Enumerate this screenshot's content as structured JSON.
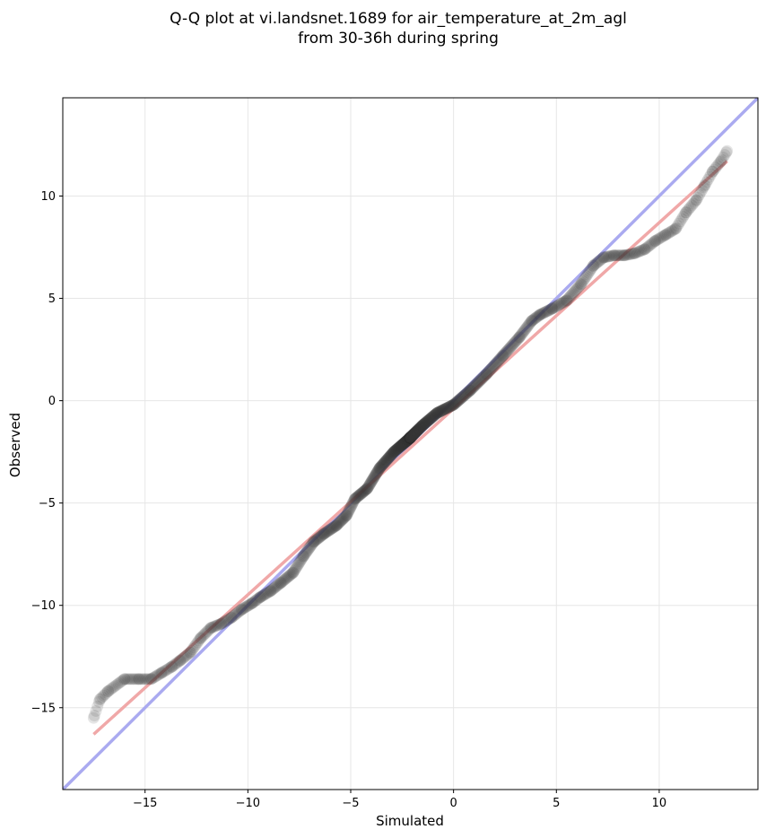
{
  "chart_data": {
    "type": "scatter",
    "title": "Q-Q plot at vi.landsnet.1689 for air_temperature_at_2m_agl\nfrom 30-36h during spring",
    "title_lines": [
      "Q-Q plot at vi.landsnet.1689 for air_temperature_at_2m_agl",
      "from 30-36h during spring"
    ],
    "xlabel": "Simulated",
    "ylabel": "Observed",
    "xlim": [
      -19,
      14.8
    ],
    "ylim": [
      -19,
      14.8
    ],
    "xticks": [
      -15,
      -10,
      -5,
      0,
      5,
      10
    ],
    "yticks": [
      -15,
      -10,
      -5,
      0,
      5,
      10
    ],
    "xtick_labels": [
      "−15",
      "−10",
      "−5",
      "0",
      "5",
      "10"
    ],
    "ytick_labels": [
      "−15",
      "−10",
      "−5",
      "0",
      "5",
      "10"
    ],
    "grid": true,
    "colors": {
      "points": "#333333",
      "identity_line": "#aaaaf0",
      "fit_line": "#f0a8a8",
      "grid": "#e6e6e6"
    },
    "lines": [
      {
        "kind": "identity",
        "x": [
          -19,
          14.8
        ],
        "y": [
          -19,
          14.8
        ]
      },
      {
        "kind": "fit",
        "x": [
          -17.5,
          13.3
        ],
        "y": [
          -16.3,
          11.7
        ]
      }
    ],
    "quantile_curve": {
      "x": [
        -17.5,
        -17.2,
        -16.8,
        -16.0,
        -15.3,
        -14.7,
        -14.2,
        -13.7,
        -13.3,
        -12.8,
        -12.3,
        -11.8,
        -11.3,
        -10.8,
        -10.3,
        -9.8,
        -9.4,
        -8.9,
        -8.4,
        -7.8,
        -7.3,
        -6.8,
        -6.3,
        -5.7,
        -5.2,
        -4.8,
        -4.2,
        -3.6,
        -2.9,
        -2.2,
        -1.5,
        -0.8,
        0.0,
        0.8,
        1.6,
        2.4,
        3.2,
        3.8,
        4.2,
        4.8,
        5.5,
        6.2,
        6.8,
        7.3,
        7.8,
        8.3,
        8.8,
        9.3,
        9.8,
        10.3,
        10.8,
        11.3,
        11.8,
        12.2,
        12.6,
        13.0,
        13.3
      ],
      "y": [
        -15.5,
        -14.6,
        -14.2,
        -13.6,
        -13.6,
        -13.6,
        -13.3,
        -13.0,
        -12.7,
        -12.3,
        -11.6,
        -11.1,
        -10.9,
        -10.6,
        -10.2,
        -9.9,
        -9.6,
        -9.3,
        -8.9,
        -8.4,
        -7.6,
        -6.9,
        -6.5,
        -6.1,
        -5.6,
        -4.8,
        -4.3,
        -3.3,
        -2.5,
        -1.9,
        -1.2,
        -0.6,
        -0.2,
        0.5,
        1.3,
        2.2,
        3.1,
        3.9,
        4.2,
        4.5,
        4.9,
        5.7,
        6.6,
        7.0,
        7.1,
        7.1,
        7.2,
        7.4,
        7.8,
        8.1,
        8.4,
        9.2,
        9.8,
        10.5,
        11.2,
        11.7,
        12.2
      ]
    }
  }
}
